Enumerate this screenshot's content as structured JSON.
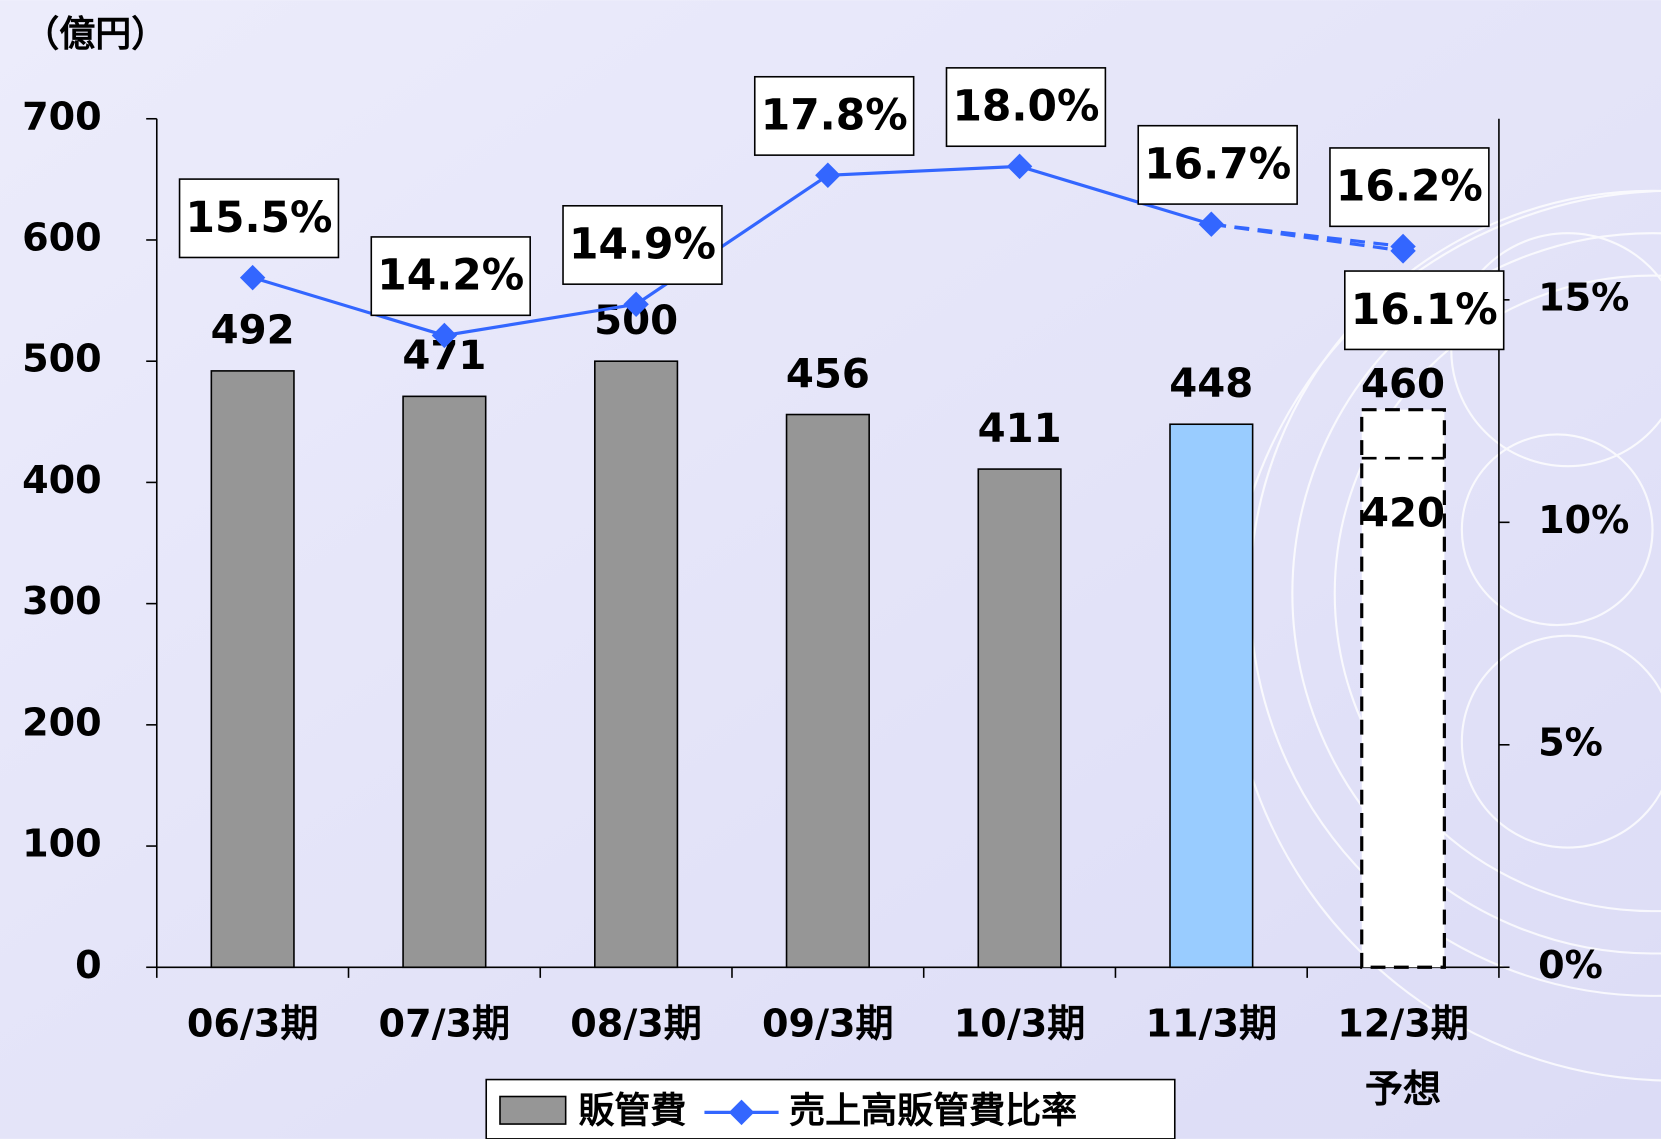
{
  "chart_data": {
    "type": "bar",
    "unit_label": "（億円）",
    "categories": [
      "06/3期",
      "07/3期",
      "08/3期",
      "09/3期",
      "10/3期",
      "11/3期",
      "12/3期\n予想"
    ],
    "ylim": [
      0,
      700
    ],
    "yticks": [
      0,
      100,
      200,
      300,
      400,
      500,
      600,
      700
    ],
    "y2lim": [
      0,
      19.07
    ],
    "y2ticks": [
      {
        "value": 0,
        "label": "0%"
      },
      {
        "value": 5,
        "label": "5%"
      },
      {
        "value": 10,
        "label": "10%"
      },
      {
        "value": 15,
        "label": "15%"
      }
    ],
    "legend": "bottom",
    "series": [
      {
        "name": "販管費",
        "type": "bar",
        "color": "#969696",
        "bar_colors": [
          "#969696",
          "#969696",
          "#969696",
          "#969696",
          "#969696",
          "#99ccff",
          "#ffffff"
        ],
        "values": [
          492,
          471,
          500,
          456,
          411,
          448,
          460
        ],
        "alt_values": [
          null,
          null,
          null,
          null,
          null,
          null,
          420
        ]
      },
      {
        "name": "売上高販管費比率",
        "type": "line",
        "axis": "y2",
        "color": "#3366ff",
        "values": [
          15.5,
          14.2,
          14.9,
          17.8,
          18.0,
          16.7,
          16.2
        ],
        "value_labels": [
          "15.5%",
          "14.2%",
          "14.9%",
          "17.8%",
          "18.0%",
          "16.7%",
          "16.2%"
        ],
        "alt_values": [
          null,
          null,
          null,
          null,
          null,
          null,
          16.1
        ],
        "alt_value_labels": [
          null,
          null,
          null,
          null,
          null,
          null,
          "16.1%"
        ]
      }
    ]
  }
}
